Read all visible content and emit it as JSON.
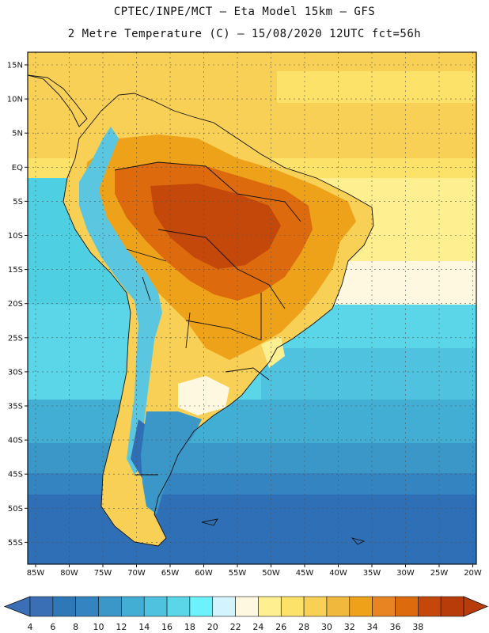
{
  "header": {
    "line1": "CPTEC/INPE/MCT –  Eta Model 15km – GFS",
    "line2": "2 Metre Temperature (C) – 15/08/2020 12UTC fct=56h"
  },
  "axes": {
    "lat_labels": [
      "15N",
      "10N",
      "5N",
      "EQ",
      "5S",
      "10S",
      "15S",
      "20S",
      "25S",
      "30S",
      "35S",
      "40S",
      "45S",
      "50S",
      "55S"
    ],
    "lon_labels": [
      "85W",
      "80W",
      "75W",
      "70W",
      "65W",
      "60W",
      "55W",
      "50W",
      "45W",
      "40W",
      "35W",
      "30W",
      "25W",
      "20W"
    ]
  },
  "colorbar": {
    "labels": [
      "4",
      "6",
      "8",
      "10",
      "12",
      "14",
      "16",
      "18",
      "20",
      "22",
      "24",
      "26",
      "28",
      "30",
      "32",
      "34",
      "36",
      "38"
    ],
    "colors": [
      "#3a6fb5",
      "#2f78b8",
      "#3584c2",
      "#3a97c8",
      "#43aed4",
      "#4ec2de",
      "#5bd6e8",
      "#6cf2fb",
      "#d3f4fc",
      "#fff8e0",
      "#fef090",
      "#fde26a",
      "#f8d056",
      "#f0b93e",
      "#eea21a",
      "#e88522",
      "#dd6a0c",
      "#c3480a",
      "#b83c0a"
    ],
    "left_arrow_color": "#3a6fb5",
    "right_arrow_color": "#b83c0a"
  },
  "colors": {
    "ocean_cold": "#2e64ad",
    "ocean_mid": "#3598c9",
    "ocean_warm": "#4fd0e2",
    "tropical": "#fbd867",
    "hot_land": "#d05a0b",
    "andes_cold": "#5bc6e0"
  }
}
